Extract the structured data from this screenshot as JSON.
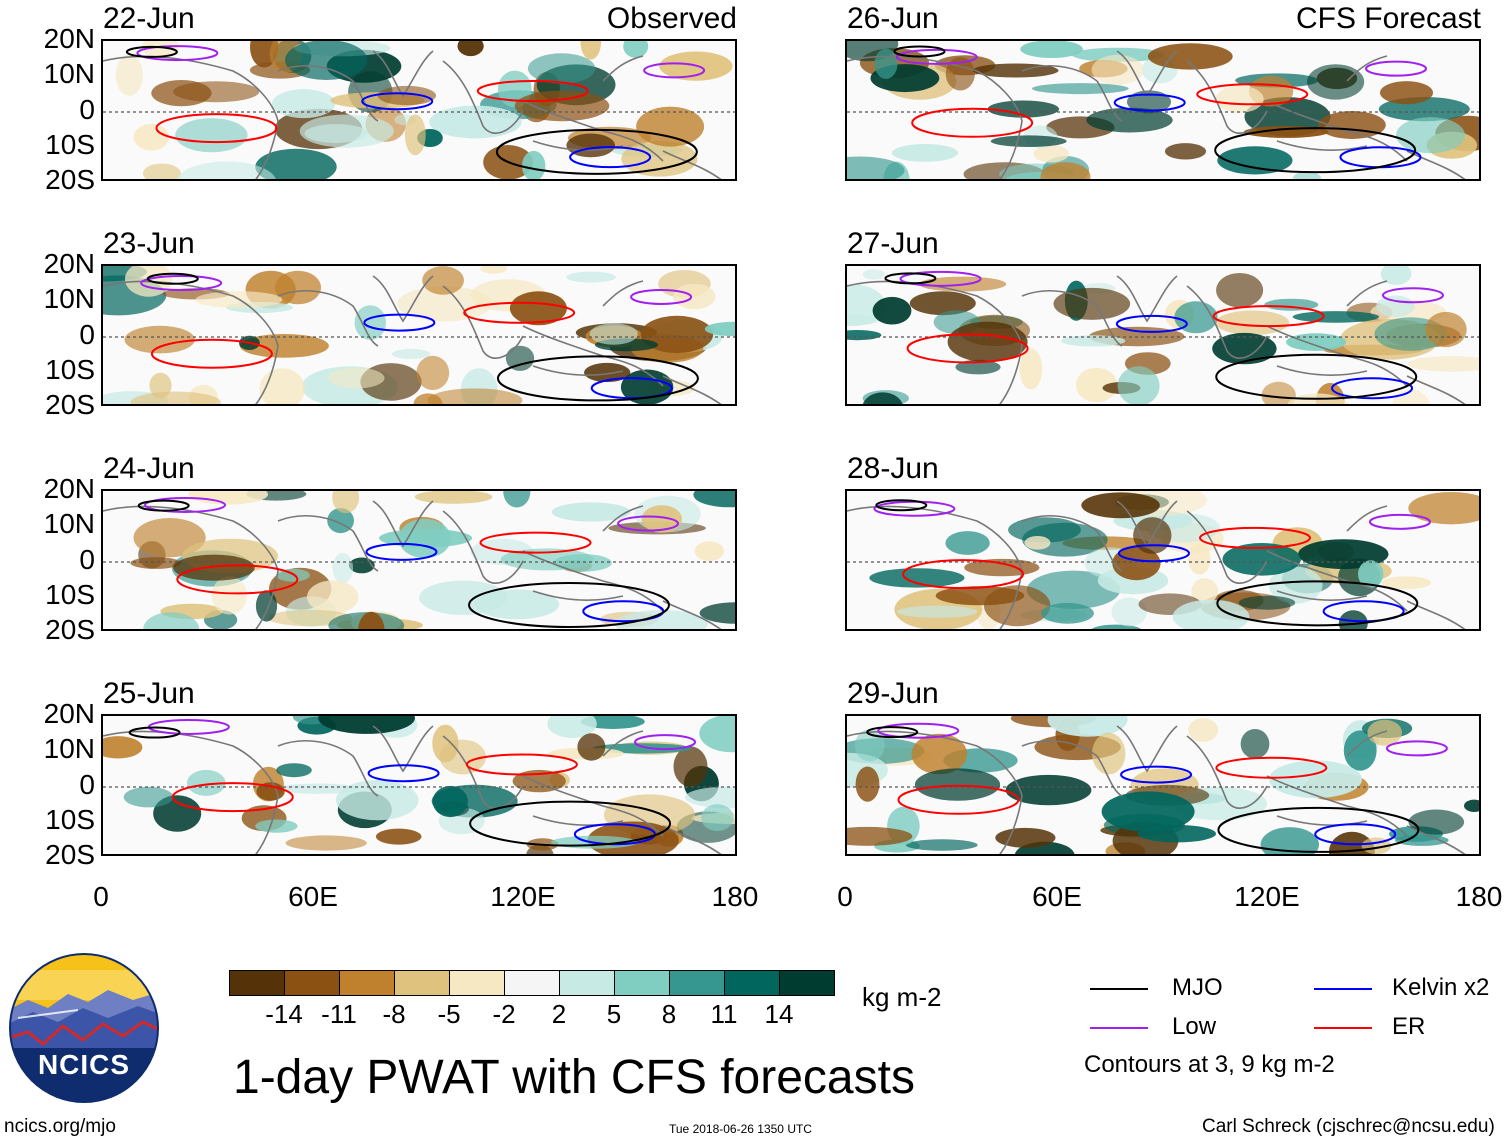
{
  "panels": [
    {
      "date": "22-Jun",
      "tag": "Observed"
    },
    {
      "date": "23-Jun",
      "tag": ""
    },
    {
      "date": "24-Jun",
      "tag": ""
    },
    {
      "date": "25-Jun",
      "tag": ""
    },
    {
      "date": "26-Jun",
      "tag": "CFS Forecast"
    },
    {
      "date": "27-Jun",
      "tag": ""
    },
    {
      "date": "28-Jun",
      "tag": ""
    },
    {
      "date": "29-Jun",
      "tag": ""
    }
  ],
  "axes": {
    "lat_ticks": [
      "20N",
      "10N",
      "0",
      "10S",
      "20S"
    ],
    "lon_ticks": [
      "0",
      "60E",
      "120E",
      "180"
    ]
  },
  "colorbar": {
    "labels": [
      "-14",
      "-11",
      "-8",
      "-5",
      "-2",
      "2",
      "5",
      "8",
      "11",
      "14"
    ],
    "colors": [
      "#553207",
      "#8b5113",
      "#bf812d",
      "#dfc27d",
      "#f6e8c3",
      "#f5f5f5",
      "#c7eae5",
      "#80cdc1",
      "#35978f",
      "#01665e",
      "#003c30"
    ],
    "units": "kg m-2"
  },
  "legend": {
    "mjo": {
      "label": "MJO",
      "color": "#000000"
    },
    "kelvin": {
      "label": "Kelvin x2",
      "color": "#0000ff"
    },
    "low": {
      "label": "Low",
      "color": "#a020f0"
    },
    "er": {
      "label": "ER",
      "color": "#ff0000"
    },
    "note": "Contours at 3, 9 kg m-2"
  },
  "title": "1-day PWAT with CFS forecasts",
  "logo": {
    "text": "NCICS"
  },
  "footer": {
    "left": "ncics.org/mjo",
    "center": "Tue 2018-06-26 1350 UTC",
    "right": "Carl Schreck (cjschrec@ncsu.edu)"
  }
}
